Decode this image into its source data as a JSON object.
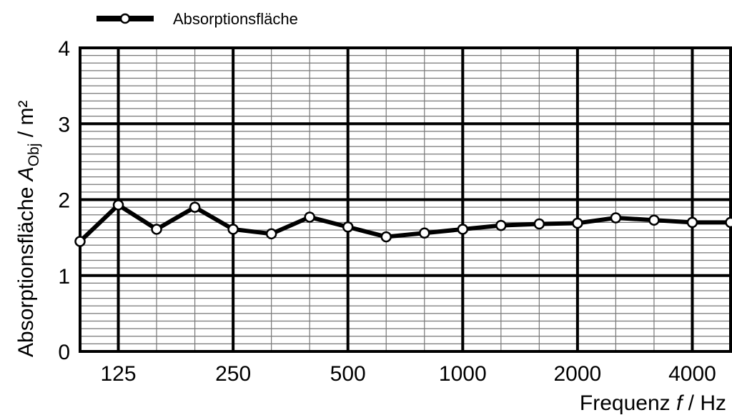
{
  "chart_data": {
    "type": "line",
    "title": "",
    "xlabel": {
      "main": "Frequenz ",
      "var": "f",
      "unit": " / Hz"
    },
    "ylabel": {
      "main": "Absorptionsfläche ",
      "var": "A",
      "sub": "Obj",
      "unit": " / m²"
    },
    "ylim": [
      0,
      4
    ],
    "yticks": [
      "0",
      "1",
      "2",
      "3",
      "4"
    ],
    "xticks": [
      "125",
      "250",
      "500",
      "1000",
      "2000",
      "4000"
    ],
    "grid": true,
    "legend_position": "top-left",
    "series": [
      {
        "name": "Absorptionsfläche",
        "color": "#000000",
        "marker_fill": "#ffffff",
        "x": [
          100,
          125,
          160,
          200,
          250,
          315,
          400,
          500,
          630,
          800,
          1000,
          1250,
          1600,
          2000,
          2500,
          3150,
          4000,
          5000
        ],
        "values": [
          1.45,
          1.93,
          1.61,
          1.9,
          1.61,
          1.55,
          1.77,
          1.64,
          1.51,
          1.56,
          1.61,
          1.66,
          1.68,
          1.69,
          1.76,
          1.73,
          1.7,
          1.7
        ]
      }
    ]
  }
}
